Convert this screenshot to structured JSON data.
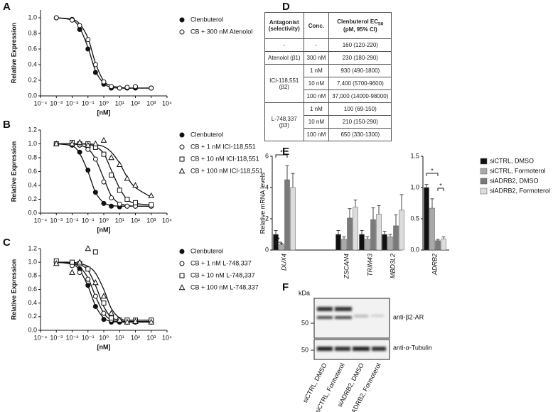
{
  "panel_labels": [
    "A",
    "B",
    "C",
    "D",
    "E",
    "F"
  ],
  "chart_data": [
    {
      "type": "dose-response",
      "xlabel": "[nM]",
      "ylabel": "Relative Expression",
      "log_x": true,
      "xlim": [
        0.0001,
        10000
      ],
      "xticks": [
        {
          "value": 0.0001,
          "label": "10⁻⁴"
        },
        {
          "value": 0.001,
          "label": "10⁻³"
        },
        {
          "value": 0.01,
          "label": "10⁻²"
        },
        {
          "value": 0.1,
          "label": "10⁻¹"
        },
        {
          "value": 1,
          "label": "10⁰"
        },
        {
          "value": 10,
          "label": "10¹"
        },
        {
          "value": 100,
          "label": "10²"
        },
        {
          "value": 1000,
          "label": "10³"
        },
        {
          "value": 10000,
          "label": "10⁴"
        }
      ],
      "ylim": [
        0,
        1.1
      ],
      "yticks": [
        {
          "value": 0,
          "label": "0.0"
        },
        {
          "value": 0.2,
          "label": "0.2"
        },
        {
          "value": 0.4,
          "label": "0.4"
        },
        {
          "value": 0.6,
          "label": "0.6"
        },
        {
          "value": 0.8,
          "label": "0.8"
        },
        {
          "value": 1,
          "label": "1.0"
        }
      ],
      "x": [
        0.001,
        0.01,
        0.03,
        0.1,
        0.3,
        1,
        3,
        10,
        30,
        100,
        1000
      ],
      "fit_x": [
        0.001,
        0.01,
        0.03,
        0.1,
        0.3,
        1,
        3,
        10,
        30,
        100,
        1000
      ],
      "series": [
        {
          "name": "Clenbuterol",
          "marker": "filled-circle",
          "color": "#111111",
          "values": [
            1.0,
            0.98,
            0.85,
            0.6,
            0.3,
            0.15,
            0.1,
            0.1,
            0.1,
            0.1,
            0.1
          ],
          "fit": [
            1.0,
            0.97,
            0.87,
            0.62,
            0.32,
            0.16,
            0.11,
            0.1,
            0.1,
            0.1,
            0.1
          ]
        },
        {
          "name": "CB + 300 nM Atenolol",
          "marker": "open-circle",
          "color": "#111111",
          "values": [
            1.0,
            0.97,
            0.9,
            0.72,
            0.4,
            0.18,
            0.12,
            0.1,
            0.11,
            0.12,
            0.1
          ],
          "fit": [
            1.0,
            0.98,
            0.92,
            0.74,
            0.42,
            0.19,
            0.13,
            0.11,
            0.1,
            0.1,
            0.1
          ]
        }
      ]
    },
    {
      "type": "dose-response",
      "xlabel": "[nM]",
      "ylabel": "Relative Expression",
      "log_x": true,
      "xlim": [
        0.0001,
        10000
      ],
      "xticks": [
        {
          "value": 0.0001,
          "label": "10⁻⁴"
        },
        {
          "value": 0.001,
          "label": "10⁻³"
        },
        {
          "value": 0.01,
          "label": "10⁻²"
        },
        {
          "value": 0.1,
          "label": "10⁻¹"
        },
        {
          "value": 1,
          "label": "10⁰"
        },
        {
          "value": 10,
          "label": "10¹"
        },
        {
          "value": 100,
          "label": "10²"
        },
        {
          "value": 1000,
          "label": "10³"
        },
        {
          "value": 10000,
          "label": "10⁴"
        }
      ],
      "ylim": [
        0,
        1.2
      ],
      "yticks": [
        {
          "value": 0,
          "label": "0.0"
        },
        {
          "value": 0.2,
          "label": "0.2"
        },
        {
          "value": 0.4,
          "label": "0.4"
        },
        {
          "value": 0.6,
          "label": "0.6"
        },
        {
          "value": 0.8,
          "label": "0.8"
        },
        {
          "value": 1,
          "label": "1.0"
        },
        {
          "value": 1.2,
          "label": "1.2"
        }
      ],
      "x": [
        0.001,
        0.01,
        0.03,
        0.1,
        0.3,
        1,
        3,
        10,
        30,
        100,
        1000
      ],
      "fit_x": [
        0.001,
        0.01,
        0.03,
        0.1,
        0.3,
        1,
        3,
        10,
        30,
        100,
        1000
      ],
      "series": [
        {
          "name": "Clenbuterol",
          "marker": "filled-circle",
          "color": "#111111",
          "values": [
            1.0,
            0.98,
            0.88,
            0.62,
            0.3,
            0.14,
            0.1,
            0.09,
            0.1,
            0.1,
            0.1
          ],
          "fit": [
            1.0,
            0.97,
            0.86,
            0.6,
            0.3,
            0.15,
            0.11,
            0.1,
            0.1,
            0.1,
            0.1
          ]
        },
        {
          "name": "CB + 1 nM ICI-118,551",
          "marker": "open-circle",
          "color": "#111111",
          "values": [
            1.0,
            1.0,
            0.98,
            0.92,
            0.78,
            0.45,
            0.22,
            0.13,
            0.1,
            0.1,
            0.1
          ],
          "fit": [
            1.0,
            1.0,
            0.98,
            0.93,
            0.78,
            0.5,
            0.25,
            0.14,
            0.11,
            0.1,
            0.1
          ]
        },
        {
          "name": "CB + 10 nM ICI-118,551",
          "marker": "open-square",
          "color": "#111111",
          "values": [
            1.0,
            1.02,
            1.0,
            1.0,
            0.95,
            0.85,
            0.55,
            0.33,
            0.2,
            0.15,
            0.12
          ],
          "fit": [
            1.0,
            1.0,
            1.0,
            0.99,
            0.96,
            0.86,
            0.62,
            0.36,
            0.2,
            0.14,
            0.12
          ]
        },
        {
          "name": "CB + 100 nM ICI-118,551",
          "marker": "open-triangle",
          "color": "#111111",
          "values": [
            1.0,
            1.0,
            1.02,
            0.98,
            1.0,
            1.05,
            0.8,
            0.7,
            0.5,
            0.4,
            0.25
          ],
          "fit": [
            1.0,
            1.0,
            1.0,
            1.0,
            0.99,
            0.96,
            0.88,
            0.72,
            0.52,
            0.37,
            0.23
          ]
        }
      ]
    },
    {
      "type": "dose-response",
      "xlabel": "[nM]",
      "ylabel": "Relative Expression",
      "log_x": true,
      "xlim": [
        0.0001,
        10000
      ],
      "xticks": [
        {
          "value": 0.0001,
          "label": "10⁻⁴"
        },
        {
          "value": 0.001,
          "label": "10⁻³"
        },
        {
          "value": 0.01,
          "label": "10⁻²"
        },
        {
          "value": 0.1,
          "label": "10⁻¹"
        },
        {
          "value": 1,
          "label": "10⁰"
        },
        {
          "value": 10,
          "label": "10¹"
        },
        {
          "value": 100,
          "label": "10²"
        },
        {
          "value": 1000,
          "label": "10³"
        },
        {
          "value": 10000,
          "label": "10⁴"
        }
      ],
      "ylim": [
        0,
        1.2
      ],
      "yticks": [
        {
          "value": 0,
          "label": "0.0"
        },
        {
          "value": 0.2,
          "label": "0.2"
        },
        {
          "value": 0.4,
          "label": "0.4"
        },
        {
          "value": 0.6,
          "label": "0.6"
        },
        {
          "value": 0.8,
          "label": "0.8"
        },
        {
          "value": 1,
          "label": "1.0"
        },
        {
          "value": 1.2,
          "label": "1.2"
        }
      ],
      "x": [
        0.001,
        0.01,
        0.03,
        0.1,
        0.3,
        1,
        3,
        10,
        30,
        100,
        1000
      ],
      "fit_x": [
        0.001,
        0.01,
        0.03,
        0.1,
        0.3,
        1,
        3,
        10,
        30,
        100,
        1000
      ],
      "series": [
        {
          "name": "Clenbuterol",
          "marker": "filled-circle",
          "color": "#111111",
          "values": [
            1.0,
            0.98,
            0.9,
            0.66,
            0.35,
            0.16,
            0.12,
            0.12,
            0.12,
            0.12,
            0.12
          ],
          "fit": [
            1.0,
            0.97,
            0.88,
            0.65,
            0.36,
            0.18,
            0.13,
            0.12,
            0.12,
            0.12,
            0.12
          ]
        },
        {
          "name": "CB + 1 nM L-748,337",
          "marker": "open-circle",
          "color": "#111111",
          "values": [
            1.0,
            0.95,
            0.85,
            0.75,
            0.5,
            0.25,
            0.15,
            0.15,
            0.12,
            0.13,
            0.15
          ],
          "fit": [
            1.0,
            0.98,
            0.93,
            0.77,
            0.5,
            0.25,
            0.15,
            0.13,
            0.13,
            0.13,
            0.13
          ]
        },
        {
          "name": "CB + 10 nM L-748,337",
          "marker": "open-square",
          "color": "#111111",
          "values": [
            1.02,
            1.0,
            0.98,
            0.9,
            1.15,
            0.4,
            0.18,
            0.15,
            0.15,
            0.15,
            0.15
          ],
          "fit": [
            1.0,
            0.99,
            0.97,
            0.88,
            0.66,
            0.35,
            0.19,
            0.15,
            0.15,
            0.15,
            0.15
          ]
        },
        {
          "name": "CB + 100 nM L-748,337",
          "marker": "open-triangle",
          "color": "#111111",
          "values": [
            0.98,
            0.85,
            1.0,
            1.2,
            0.7,
            0.5,
            0.25,
            0.15,
            0.12,
            0.13,
            0.12
          ],
          "fit": [
            1.0,
            1.0,
            0.98,
            0.94,
            0.84,
            0.6,
            0.32,
            0.18,
            0.14,
            0.13,
            0.13
          ]
        }
      ]
    },
    {
      "type": "grouped-bar",
      "ylabel": "Relative mRNA levels",
      "categories": [
        "DUX4",
        "ZSCAN4",
        "TRIM43",
        "MBD3L2"
      ],
      "ylim": [
        0,
        6
      ],
      "yticks": [
        0,
        2,
        4,
        6
      ],
      "annotations": [
        "*",
        "*"
      ],
      "series": [
        {
          "color": "#111111",
          "values": [
            1.0,
            1.0,
            1.0,
            1.0
          ],
          "errors": [
            0.25,
            0.25,
            0.25,
            0.2
          ]
        },
        {
          "color": "#a9a9a9",
          "values": [
            0.35,
            0.7,
            0.7,
            0.85
          ],
          "errors": [
            0.08,
            0.15,
            0.15,
            0.15
          ]
        },
        {
          "color": "#7a7a7a",
          "values": [
            4.5,
            2.05,
            1.95,
            1.55
          ],
          "errors": [
            0.9,
            0.6,
            0.75,
            0.7
          ]
        },
        {
          "color": "#dcdcdc",
          "values": [
            4.0,
            2.75,
            2.3,
            2.55
          ],
          "errors": [
            0.9,
            0.45,
            0.55,
            1.0
          ]
        }
      ]
    },
    {
      "type": "grouped-bar",
      "categories": [
        "ADRB2"
      ],
      "ylim": [
        0,
        1.5
      ],
      "yticks": [
        {
          "value": 0,
          "label": "0.0"
        },
        {
          "value": 0.5,
          "label": "0.5"
        },
        {
          "value": 1,
          "label": "1.0"
        },
        {
          "value": 1.5,
          "label": "1.5"
        }
      ],
      "annotations": [
        "*",
        "*"
      ],
      "series": [
        {
          "name": "siCTRL, DMSO",
          "color": "#111111",
          "values": [
            1.0
          ],
          "errors": [
            0.05
          ]
        },
        {
          "name": "siCTRL, Formoterol",
          "color": "#a9a9a9",
          "values": [
            0.67
          ],
          "errors": [
            0.15
          ]
        },
        {
          "name": "siADRB2, DMSO",
          "color": "#7a7a7a",
          "values": [
            0.15
          ],
          "errors": [
            0.02
          ]
        },
        {
          "name": "siADRB2, Formoterol",
          "color": "#dcdcdc",
          "values": [
            0.18
          ],
          "errors": [
            0.03
          ]
        }
      ]
    }
  ],
  "table": {
    "header": {
      "antagonist": "Antagonist",
      "selectivity": "(selectivity)",
      "conc": "Conc.",
      "ec": "Clenbuterol EC",
      "ec_sub": "50",
      "ec_unit": "(pM, 95% CI)"
    },
    "groups": [
      {
        "antagonist": "-",
        "rows": [
          [
            "-",
            "160 (120-220)"
          ]
        ]
      },
      {
        "antagonist": "Atenolol",
        "selectivity": "(β1)",
        "rows": [
          [
            "300 nM",
            "230 (180-290)"
          ]
        ]
      },
      {
        "antagonist": "ICI-118,551",
        "selectivity": "(β2)",
        "rows": [
          [
            "1 nM",
            "930 (490-1800)"
          ],
          [
            "10 nM",
            "7,400 (5700-9600)"
          ],
          [
            "100 nM",
            "37,000 (14000-98000)"
          ]
        ]
      },
      {
        "antagonist": "L-748,337",
        "selectivity": "(β3)",
        "rows": [
          [
            "1 nM",
            "100 (69-150)"
          ],
          [
            "10 nM",
            "210 (150-290)"
          ],
          [
            "100 nM",
            "650 (330-1300)"
          ]
        ]
      }
    ]
  },
  "blot": {
    "kda": "kDa",
    "markers": [
      "50",
      "50"
    ],
    "antibodies": [
      "anti-β2-AR",
      "anti-α-Tubulin"
    ],
    "lanes": [
      "siCTRL, DMSO",
      "siCTRL, Formoterol",
      "siADRB2, DMSO",
      "siADRB2, Formoterol"
    ]
  }
}
